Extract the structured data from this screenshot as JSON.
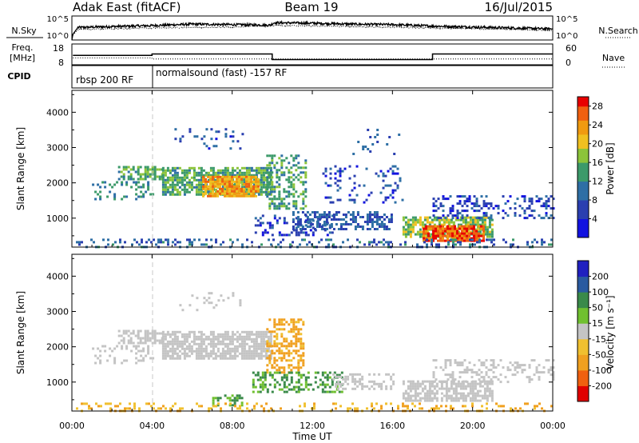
{
  "header": {
    "radar": "Adak East (fitACF)",
    "beam": "Beam 19",
    "date": "16/Jul/2015"
  },
  "chart_data": [
    {
      "type": "line",
      "panel": "noise",
      "left_label": "N.Sky",
      "right_label": "N.Search",
      "left_ticks": [
        "10^5",
        "10^0"
      ],
      "right_ticks": [
        "10^5",
        "10^0"
      ],
      "ylim_log10": [
        0,
        5
      ],
      "series": [
        {
          "style": "solid",
          "x": [
            0,
            0.05,
            0.3,
            2,
            4,
            6,
            8,
            9.9,
            10.1,
            12,
            14,
            16,
            18,
            20,
            22,
            24
          ],
          "y": [
            0,
            1.2,
            2.6,
            2.8,
            3.0,
            3.3,
            3.2,
            3.1,
            3.6,
            3.5,
            3.3,
            3.2,
            2.9,
            2.7,
            2.5,
            2.3
          ]
        },
        {
          "style": "dotted",
          "x": [
            0,
            0.05,
            0.3,
            4,
            8,
            10.1,
            14,
            18,
            24
          ],
          "y": [
            0,
            1.0,
            2.2,
            2.5,
            2.7,
            3.0,
            2.8,
            2.5,
            2.0
          ]
        }
      ]
    },
    {
      "type": "line",
      "panel": "frequency",
      "left_label": "Freq.",
      "left_unit": "[MHz]",
      "left_ticks": [
        "18",
        "8"
      ],
      "right_label": "Nave",
      "right_ticks": [
        "60",
        "0"
      ],
      "ylim": [
        8,
        18
      ],
      "series": [
        {
          "name": "Freq.",
          "style": "solid",
          "x": [
            0.05,
            4,
            4,
            10,
            10,
            18,
            18,
            24
          ],
          "y": [
            12.5,
            12.5,
            13.2,
            13.2,
            10.5,
            10.5,
            13.2,
            13.2
          ]
        },
        {
          "name": "Nave",
          "style": "dotted",
          "x": [
            0.05,
            4,
            4,
            24
          ],
          "y": [
            11.3,
            11.3,
            10.8,
            10.8
          ]
        }
      ]
    },
    {
      "type": "table",
      "panel": "cpid",
      "label": "CPID",
      "segments": [
        {
          "start": 0,
          "end": 4,
          "text": "rbsp 200 RF"
        },
        {
          "start": 4,
          "end": 24,
          "text": "normalsound (fast) -157 RF"
        }
      ]
    },
    {
      "type": "heatmap",
      "panel": "power",
      "ylabel": "Slant Range [km]",
      "yticks": [
        1000,
        2000,
        3000,
        4000
      ],
      "ylim": [
        180,
        4620
      ],
      "xlim": [
        0,
        24
      ],
      "colorbar": {
        "label": "Power [dB]",
        "ticks": [
          "4",
          "8",
          "12",
          "16",
          "20",
          "24",
          "28"
        ],
        "range": [
          0,
          30
        ]
      },
      "regions": [
        {
          "t0": 1.0,
          "t1": 4.0,
          "r0": 1550,
          "r1": 2050,
          "v": 12,
          "d": 0.25
        },
        {
          "t0": 2.3,
          "t1": 4.5,
          "r0": 2080,
          "r1": 2480,
          "v": 15,
          "d": 0.55
        },
        {
          "t0": 4.5,
          "t1": 10.0,
          "r0": 1700,
          "r1": 2450,
          "v": 15,
          "d": 0.75
        },
        {
          "t0": 6.5,
          "t1": 9.3,
          "r0": 1650,
          "r1": 2200,
          "v": 23,
          "d": 0.85
        },
        {
          "t0": 9.7,
          "t1": 11.7,
          "r0": 1250,
          "r1": 2800,
          "v": 14,
          "d": 0.45
        },
        {
          "t0": 5.0,
          "t1": 8.5,
          "r0": 3000,
          "r1": 3550,
          "v": 7,
          "d": 0.12
        },
        {
          "t0": 9.0,
          "t1": 13.0,
          "r0": 500,
          "r1": 1100,
          "v": 6,
          "d": 0.3
        },
        {
          "t0": 11.0,
          "t1": 16.0,
          "r0": 700,
          "r1": 1200,
          "v": 8,
          "d": 0.5
        },
        {
          "t0": 12.5,
          "t1": 16.5,
          "r0": 1450,
          "r1": 2500,
          "v": 6,
          "d": 0.15
        },
        {
          "t0": 16.5,
          "t1": 21.0,
          "r0": 450,
          "r1": 1050,
          "v": 17,
          "d": 0.7
        },
        {
          "t0": 17.5,
          "t1": 20.5,
          "r0": 350,
          "r1": 800,
          "v": 27,
          "d": 0.85
        },
        {
          "t0": 18.0,
          "t1": 24.0,
          "r0": 1000,
          "r1": 1650,
          "v": 6,
          "d": 0.35
        },
        {
          "t0": 0.2,
          "t1": 24.0,
          "r0": 200,
          "r1": 420,
          "v": 9,
          "d": 0.25
        },
        {
          "t0": 14.0,
          "t1": 16.5,
          "r0": 2800,
          "r1": 3600,
          "v": 8,
          "d": 0.05
        }
      ]
    },
    {
      "type": "heatmap",
      "panel": "velocity",
      "ylabel": "Slant Range [km]",
      "yticks": [
        1000,
        2000,
        3000,
        4000
      ],
      "ylim": [
        180,
        4620
      ],
      "xlim": [
        0,
        24
      ],
      "xlabel": "Time UT",
      "xticks": [
        "00:00",
        "04:00",
        "08:00",
        "12:00",
        "16:00",
        "20:00",
        "00:00"
      ],
      "colorbar": {
        "label": "Velocity [m s⁻¹]",
        "ticks": [
          "200",
          "100",
          "50",
          "15",
          "-15",
          "-50",
          "-100",
          "-200"
        ],
        "range": [
          -250,
          250
        ]
      },
      "regions": [
        {
          "t0": 1.0,
          "t1": 4.0,
          "r0": 1550,
          "r1": 2050,
          "v": 0,
          "d": 0.25
        },
        {
          "t0": 2.3,
          "t1": 4.5,
          "r0": 2080,
          "r1": 2480,
          "v": 0,
          "d": 0.55
        },
        {
          "t0": 4.5,
          "t1": 10.0,
          "r0": 1700,
          "r1": 2450,
          "v": 0,
          "d": 0.75
        },
        {
          "t0": 9.7,
          "t1": 11.5,
          "r0": 1250,
          "r1": 2800,
          "v": -40,
          "d": 0.45
        },
        {
          "t0": 9.0,
          "t1": 13.5,
          "r0": 700,
          "r1": 1300,
          "v": 35,
          "d": 0.45
        },
        {
          "t0": 7.0,
          "t1": 8.5,
          "r0": 350,
          "r1": 650,
          "v": 35,
          "d": 0.35
        },
        {
          "t0": 13.0,
          "t1": 16.0,
          "r0": 800,
          "r1": 1250,
          "v": 0,
          "d": 0.4
        },
        {
          "t0": 16.5,
          "t1": 21.0,
          "r0": 450,
          "r1": 1050,
          "v": 0,
          "d": 0.7
        },
        {
          "t0": 18.0,
          "t1": 24.0,
          "r0": 1000,
          "r1": 1650,
          "v": 0,
          "d": 0.3
        },
        {
          "t0": 0.2,
          "t1": 24.0,
          "r0": 200,
          "r1": 420,
          "v": -30,
          "d": 0.2
        },
        {
          "t0": 5.0,
          "t1": 8.5,
          "r0": 3000,
          "r1": 3550,
          "v": 0,
          "d": 0.1
        }
      ]
    }
  ]
}
